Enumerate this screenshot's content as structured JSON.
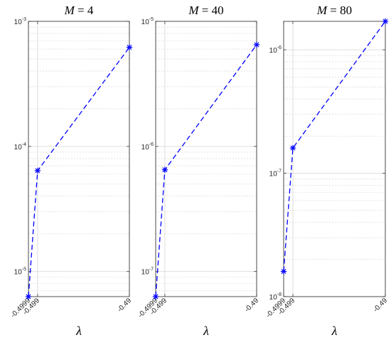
{
  "chart_data": [
    {
      "type": "line",
      "title": "M = 4",
      "title_var": "M",
      "title_value": "4",
      "xlabel": "λ",
      "ylabel": "",
      "x": [
        -0.4999,
        -0.499,
        -0.49
      ],
      "xtick_labels": [
        "-0.4999",
        "-0.499",
        "-0.49"
      ],
      "y_scale": "log",
      "ylim": [
        6.3e-06,
        0.001
      ],
      "ytick_exponents": [
        -3,
        -4,
        -5
      ],
      "series": [
        {
          "values": [
            6.3e-06,
            6.4e-05,
            0.00062
          ],
          "color": "#0000ff",
          "linestyle": "dashed",
          "marker": "asterisk"
        }
      ],
      "grid": true
    },
    {
      "type": "line",
      "title": "M = 40",
      "title_var": "M",
      "title_value": "40",
      "xlabel": "λ",
      "ylabel": "",
      "x": [
        -0.4999,
        -0.499,
        -0.49
      ],
      "xtick_labels": [
        "-0.4999",
        "-0.499",
        "-0.49"
      ],
      "y_scale": "log",
      "ylim": [
        6.3e-08,
        1e-05
      ],
      "ytick_exponents": [
        -5,
        -6,
        -7
      ],
      "series": [
        {
          "values": [
            6.3e-08,
            6.5e-07,
            6.5e-06
          ],
          "color": "#0000ff",
          "linestyle": "dashed",
          "marker": "asterisk"
        }
      ],
      "grid": true
    },
    {
      "type": "line",
      "title": "M = 80",
      "title_var": "M",
      "title_value": "80",
      "xlabel": "λ",
      "ylabel": "",
      "x": [
        -0.4999,
        -0.499,
        -0.49
      ],
      "xtick_labels": [
        "-0.4999",
        "-0.499",
        "-0.49"
      ],
      "y_scale": "log",
      "ylim": [
        1e-08,
        1.7e-06
      ],
      "ytick_exponents": [
        -6,
        -7,
        -8
      ],
      "series": [
        {
          "values": [
            1.6e-08,
            1.6e-07,
            1.7e-06
          ],
          "color": "#0000ff",
          "linestyle": "dashed",
          "marker": "asterisk"
        }
      ],
      "grid": true
    }
  ]
}
